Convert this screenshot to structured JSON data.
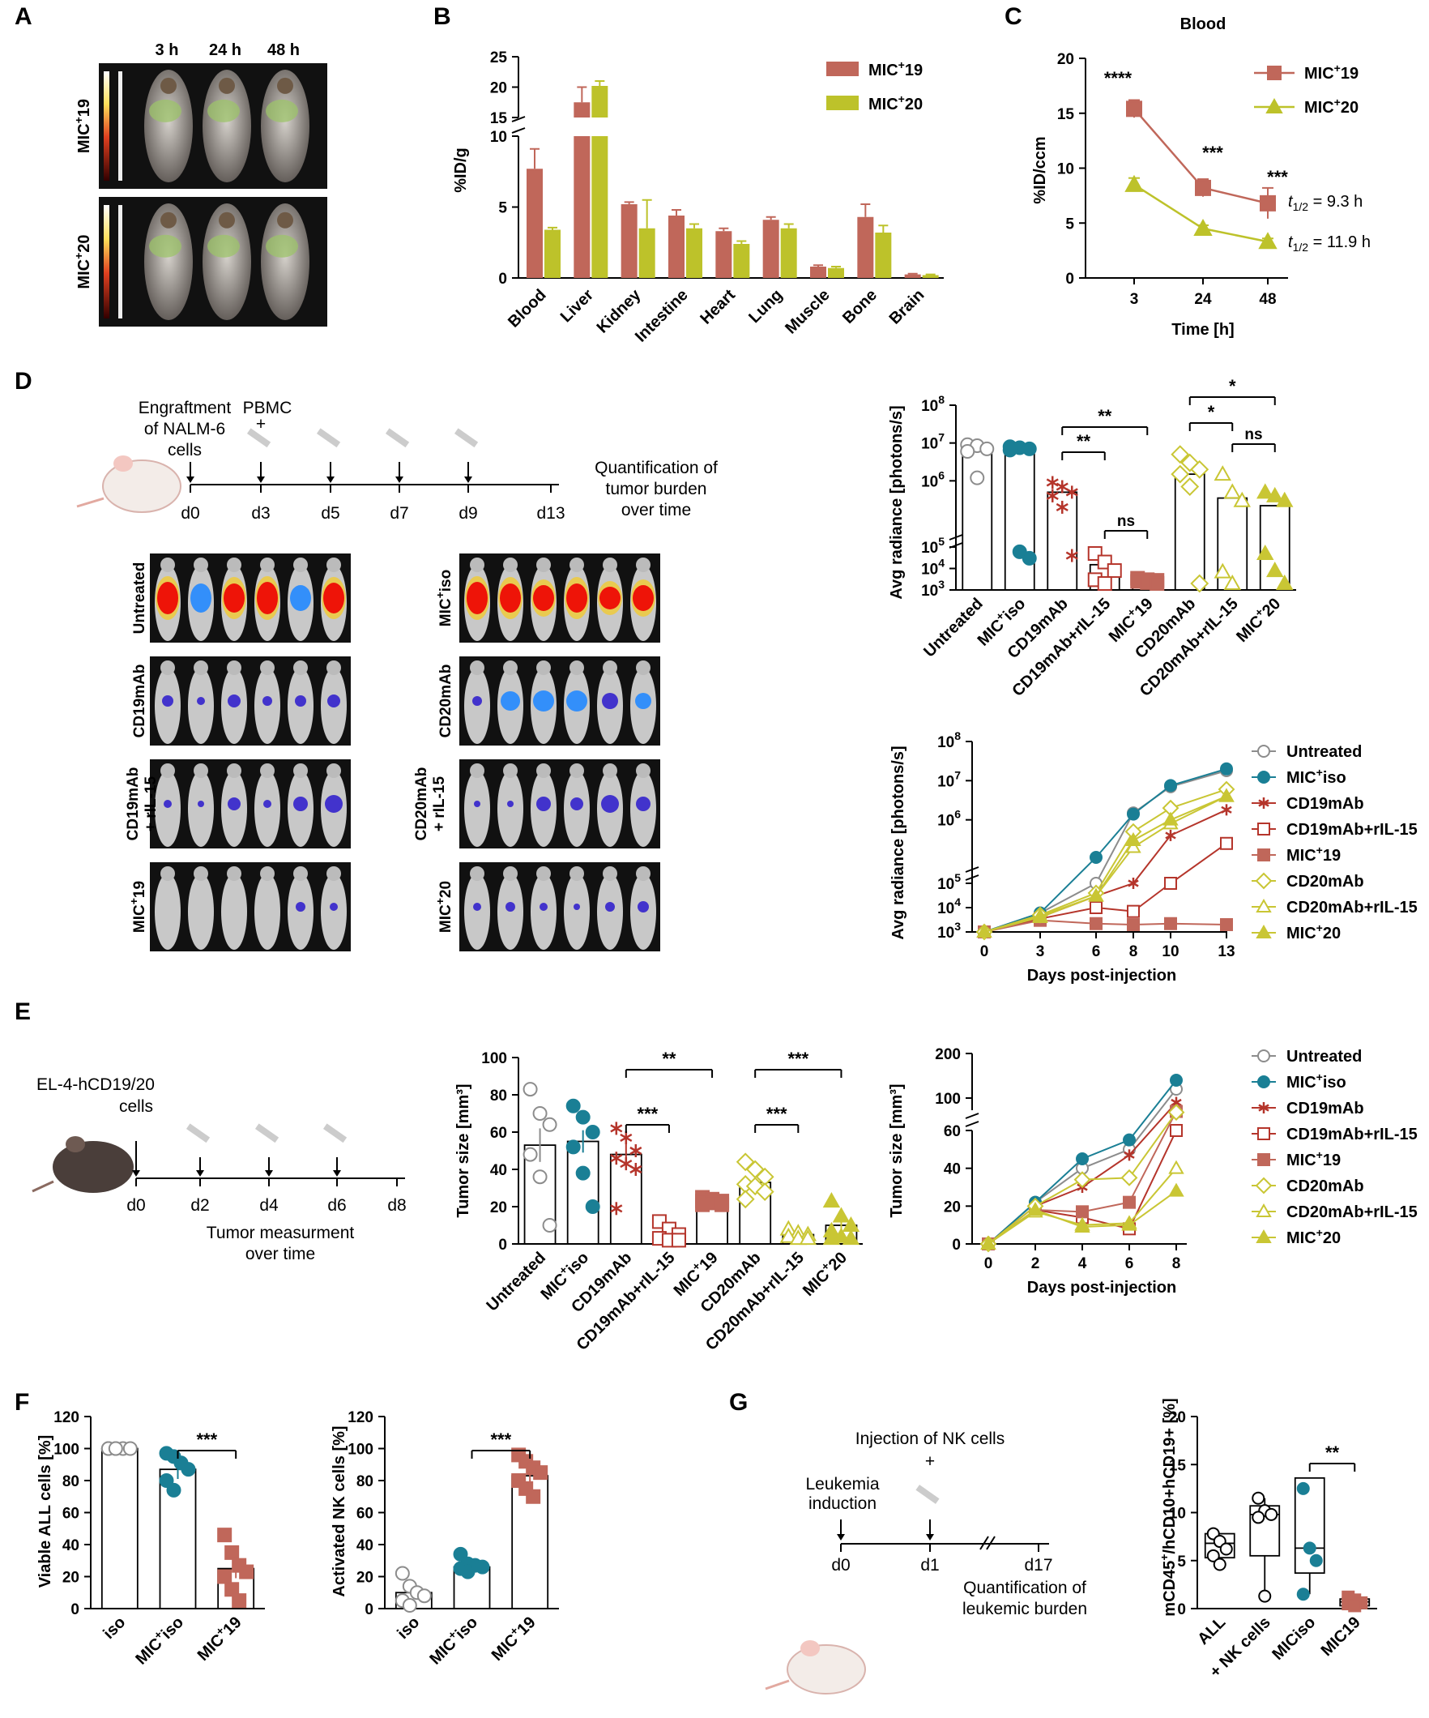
{
  "panels": {
    "A": {
      "label": "A",
      "time_labels": [
        "3 h",
        "24 h",
        "48 h"
      ],
      "row_labels": [
        "MIC+19",
        "MIC+20"
      ]
    },
    "B": {
      "label": "B"
    },
    "C": {
      "label": "C",
      "title": "Blood",
      "t_half": [
        "t1/2 = 9.3 h",
        "t1/2 = 11.9 h"
      ]
    },
    "D": {
      "label": "D",
      "schematic": {
        "events": [
          "Engraftment of NALM-6 cells",
          "PBMC +"
        ],
        "days": [
          "d0",
          "d3",
          "d5",
          "d7",
          "d9",
          "d13"
        ],
        "end_text": "Quantification of tumor burden over time"
      },
      "image_rows_left": [
        "Untreated",
        "CD19mAb",
        "CD19mAb + rIL-15",
        "MIC+19"
      ],
      "image_rows_right": [
        "MIC+iso",
        "CD20mAb",
        "CD20mAb + rIL-15",
        "MIC+20"
      ]
    },
    "E": {
      "label": "E",
      "schematic": {
        "cells": "EL-4-hCD19/20 cells",
        "days": [
          "d0",
          "d2",
          "d4",
          "d6",
          "d8"
        ],
        "end_text": "Tumor measurment over time"
      }
    },
    "F": {
      "label": "F"
    },
    "G": {
      "label": "G",
      "schematic": {
        "events": [
          "Leukemia induction",
          "Injection of NK cells +"
        ],
        "days": [
          "d0",
          "d1",
          "d17"
        ],
        "end_text": "Quantification of leukemic burden"
      }
    }
  },
  "colors": {
    "mic19": "#c0675a",
    "mic20": "#bdc22a",
    "red": "#b5352b",
    "teal": "#1a7f95",
    "gray": "#8c8c8c",
    "yellow": "#c9c634"
  },
  "legend_D_E": [
    "Untreated",
    "MIC+iso",
    "CD19mAb",
    "CD19mAb+rIL-15",
    "MIC+19",
    "CD20mAb",
    "CD20mAb+rIL-15",
    "MIC+20"
  ],
  "chart_data": [
    {
      "id": "B",
      "type": "bar",
      "ylabel": "%ID/g",
      "categories": [
        "Blood",
        "Liver",
        "Kidney",
        "Intestine",
        "Heart",
        "Lung",
        "Muscle",
        "Bone",
        "Brain"
      ],
      "series": [
        {
          "name": "MIC+19",
          "values": [
            7.7,
            17.5,
            5.2,
            4.4,
            3.3,
            4.1,
            0.8,
            4.3,
            0.25
          ],
          "errors": [
            1.4,
            2.5,
            0.15,
            0.4,
            0.2,
            0.2,
            0.1,
            0.9,
            0.05
          ]
        },
        {
          "name": "MIC+20",
          "values": [
            3.4,
            20.2,
            3.5,
            3.5,
            2.4,
            3.5,
            0.7,
            3.2,
            0.2
          ],
          "errors": [
            0.15,
            0.8,
            2.0,
            0.3,
            0.2,
            0.3,
            0.1,
            0.5,
            0.05
          ]
        }
      ],
      "yticks": [
        "0",
        "5",
        "10",
        "15",
        "20",
        "25"
      ],
      "broken_axis": true
    },
    {
      "id": "C",
      "type": "line",
      "title": "Blood",
      "xlabel": "Time [h]",
      "ylabel": "%ID/ccm",
      "x": [
        "3",
        "24",
        "48"
      ],
      "series": [
        {
          "name": "MIC+19",
          "values": [
            15.4,
            8.2,
            6.8
          ],
          "errors": [
            0.8,
            0.8,
            1.4
          ]
        },
        {
          "name": "MIC+20",
          "values": [
            8.5,
            4.5,
            3.3
          ],
          "errors": [
            0.6,
            0.3,
            0.3
          ]
        }
      ],
      "ylim": [
        0,
        20
      ],
      "yticks": [
        "0",
        "5",
        "10",
        "15",
        "20"
      ],
      "significance": [
        "****",
        "***",
        "***"
      ]
    },
    {
      "id": "D-scatter",
      "type": "bar",
      "ylabel": "Avg radiance [photons/s]",
      "categories": [
        "Untreated",
        "MIC+iso",
        "CD19mAb",
        "CD19mAb+rIL-15",
        "MIC+19",
        "CD20mAb",
        "CD20mAb+rIL-15",
        "MIC+20"
      ],
      "values": [
        8000000,
        7000000,
        500000,
        15000,
        3000,
        1500000,
        350000,
        220000
      ],
      "yticks": [
        "10^3",
        "10^4",
        "10^5",
        "10^6",
        "10^7",
        "10^8"
      ],
      "significance": [
        {
          "pair": [
            "CD19mAb",
            "CD19mAb+rIL-15"
          ],
          "label": "**"
        },
        {
          "pair": [
            "CD19mAb",
            "MIC+19"
          ],
          "label": "**"
        },
        {
          "pair": [
            "CD19mAb+rIL-15",
            "MIC+19"
          ],
          "label": "ns"
        },
        {
          "pair": [
            "CD20mAb",
            "CD20mAb+rIL-15"
          ],
          "label": "*"
        },
        {
          "pair": [
            "CD20mAb",
            "MIC+20"
          ],
          "label": "*"
        },
        {
          "pair": [
            "CD20mAb+rIL-15",
            "MIC+20"
          ],
          "label": "ns"
        }
      ]
    },
    {
      "id": "D-line",
      "type": "line",
      "xlabel": "Days post-injection",
      "ylabel": "Avg radiance [photons/s]",
      "x": [
        "0",
        "3",
        "6",
        "8",
        "10",
        "13"
      ],
      "series": [
        {
          "name": "Untreated",
          "values": [
            1000,
            6000,
            100000,
            1500000,
            7000000,
            18000000
          ]
        },
        {
          "name": "MIC+iso",
          "values": [
            1000,
            6000,
            110000,
            1400000,
            7500000,
            20000000
          ]
        },
        {
          "name": "CD19mAb",
          "values": [
            1000,
            4000,
            30000,
            100000,
            400000,
            1800000
          ]
        },
        {
          "name": "CD19mAb+rIL-15",
          "values": [
            1000,
            3500,
            10000,
            7000,
            100000,
            250000
          ]
        },
        {
          "name": "MIC+19",
          "values": [
            1000,
            3000,
            2200,
            2000,
            2200,
            2000
          ]
        },
        {
          "name": "CD20mAb",
          "values": [
            1000,
            5000,
            40000,
            500000,
            2000000,
            6000000
          ]
        },
        {
          "name": "CD20mAb+rIL-15",
          "values": [
            1000,
            4000,
            30000,
            200000,
            800000,
            4000000
          ]
        },
        {
          "name": "MIC+20",
          "values": [
            1000,
            4500,
            30000,
            300000,
            1000000,
            4000000
          ]
        }
      ],
      "yticks": [
        "10^3",
        "10^4",
        "10^5",
        "10^6",
        "10^7",
        "10^8"
      ]
    },
    {
      "id": "E-bar",
      "type": "bar",
      "ylabel": "Tumor size [mm³]",
      "categories": [
        "Untreated",
        "MIC+iso",
        "CD19mAb",
        "CD19mAb+rIL-15",
        "MIC+19",
        "CD20mAb",
        "CD20mAb+rIL-15",
        "MIC+20"
      ],
      "values": [
        53,
        55,
        48,
        6,
        22,
        33,
        5,
        10
      ],
      "errors": [
        9,
        6,
        6,
        2,
        1,
        3,
        1,
        2
      ],
      "points": [
        [
          83,
          70,
          64,
          48,
          36,
          10
        ],
        [
          74,
          68,
          60,
          52,
          38,
          20
        ],
        [
          62,
          57,
          50,
          46,
          43,
          40,
          19
        ],
        [
          12,
          8,
          5,
          3,
          2,
          2
        ],
        [
          25,
          24,
          23,
          23,
          22,
          21,
          21
        ],
        [
          44,
          40,
          36,
          32,
          31,
          28,
          24
        ],
        [
          8,
          6,
          5,
          4,
          3,
          3
        ],
        [
          23,
          15,
          10,
          7,
          4,
          3,
          3
        ]
      ],
      "ylim": [
        0,
        100
      ],
      "yticks": [
        "0",
        "20",
        "40",
        "60",
        "80",
        "100"
      ],
      "significance": [
        {
          "pair": [
            "CD19mAb",
            "CD19mAb+rIL-15"
          ],
          "label": "***"
        },
        {
          "pair": [
            "CD19mAb",
            "MIC+19"
          ],
          "label": "**"
        },
        {
          "pair": [
            "CD20mAb",
            "CD20mAb+rIL-15"
          ],
          "label": "***"
        },
        {
          "pair": [
            "CD20mAb",
            "MIC+20"
          ],
          "label": "***"
        }
      ]
    },
    {
      "id": "E-line",
      "type": "line",
      "xlabel": "Days post-injection",
      "ylabel": "Tumor size [mm³]",
      "x": [
        "0",
        "2",
        "4",
        "6",
        "8"
      ],
      "series": [
        {
          "name": "Untreated",
          "values": [
            0,
            22,
            40,
            50,
            120
          ]
        },
        {
          "name": "MIC+iso",
          "values": [
            0,
            22,
            45,
            55,
            140
          ]
        },
        {
          "name": "CD19mAb",
          "values": [
            0,
            20,
            30,
            47,
            90
          ]
        },
        {
          "name": "CD19mAb+rIL-15",
          "values": [
            0,
            18,
            14,
            8,
            60
          ]
        },
        {
          "name": "MIC+19",
          "values": [
            0,
            18,
            17,
            22,
            70
          ]
        },
        {
          "name": "CD20mAb",
          "values": [
            0,
            20,
            34,
            35,
            68
          ]
        },
        {
          "name": "CD20mAb+rIL-15",
          "values": [
            0,
            17,
            10,
            11,
            40
          ]
        },
        {
          "name": "MIC+20",
          "values": [
            0,
            18,
            9,
            10,
            28
          ]
        }
      ],
      "yticks": [
        "0",
        "20",
        "40",
        "60",
        "100",
        "200"
      ]
    },
    {
      "id": "F-left",
      "type": "bar",
      "ylabel": "Viable ALL cells [%]",
      "categories": [
        "iso",
        "MIC+iso",
        "MIC+19"
      ],
      "values": [
        100,
        87,
        25
      ],
      "errors": [
        0,
        6,
        6
      ],
      "points": [
        [
          100,
          100,
          100,
          100,
          100,
          100
        ],
        [
          97,
          95,
          91,
          87,
          80,
          74
        ],
        [
          46,
          35,
          27,
          23,
          20,
          12,
          5
        ]
      ],
      "ylim": [
        0,
        120
      ],
      "yticks": [
        "0",
        "20",
        "40",
        "60",
        "80",
        "100",
        "120"
      ],
      "significance": [
        {
          "pair": [
            "MIC+iso",
            "MIC+19"
          ],
          "label": "***"
        }
      ]
    },
    {
      "id": "F-right",
      "type": "bar",
      "ylabel": "Activated NK cells [%]",
      "categories": [
        "iso",
        "MIC+iso",
        "MIC+19"
      ],
      "values": [
        10,
        26,
        83
      ],
      "errors": [
        3,
        2,
        5
      ],
      "points": [
        [
          22,
          14,
          10,
          8,
          5,
          2
        ],
        [
          34,
          28,
          27,
          26,
          25,
          23
        ],
        [
          96,
          92,
          88,
          85,
          80,
          75,
          70
        ]
      ],
      "ylim": [
        0,
        120
      ],
      "yticks": [
        "0",
        "20",
        "40",
        "60",
        "80",
        "100",
        "120"
      ],
      "significance": [
        {
          "pair": [
            "MIC+iso",
            "MIC+19"
          ],
          "label": "***"
        }
      ]
    },
    {
      "id": "G-box",
      "type": "scatter",
      "ylabel": "mCD45+/hCD10+hCD19+ [%]",
      "categories": [
        "ALL",
        "+ NK cells",
        "MICiso",
        "MIC19"
      ],
      "points": [
        [
          7.8,
          7.0,
          6.2,
          5.5,
          4.6
        ],
        [
          11.5,
          10.2,
          9.8,
          9.5,
          1.3
        ],
        [
          12.5,
          6.3,
          5.0,
          1.5
        ],
        [
          1.2,
          0.9,
          0.6,
          0.5,
          0.3
        ]
      ],
      "ylim": [
        0,
        20
      ],
      "yticks": [
        "0",
        "5",
        "10",
        "15",
        "20"
      ],
      "significance": [
        {
          "pair": [
            "MICiso",
            "MIC19"
          ],
          "label": "**"
        }
      ]
    }
  ]
}
